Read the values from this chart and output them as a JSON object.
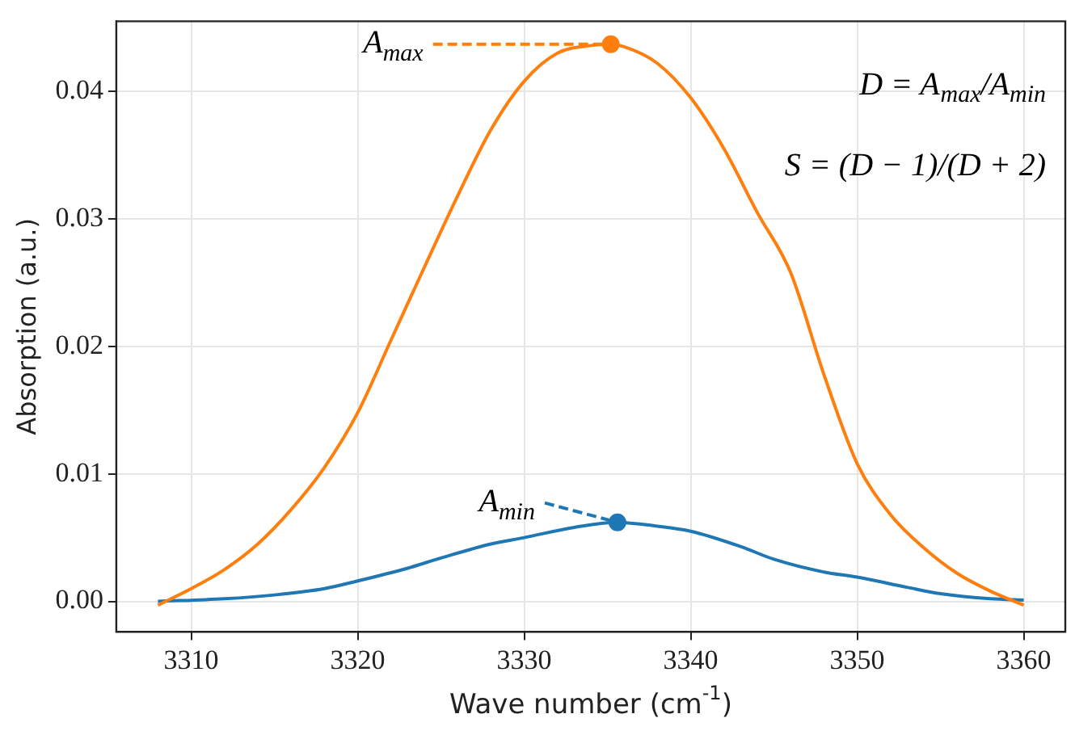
{
  "chart_data": {
    "type": "line",
    "xlabel": "Wave number (cm$^{-1}$)",
    "ylabel": "Absorption (a.u.)",
    "xlim": [
      3305.5,
      3362.5
    ],
    "ylim": [
      -0.0024,
      0.0455
    ],
    "xticks": [
      3310,
      3320,
      3330,
      3340,
      3350,
      3360
    ],
    "yticks": [
      {
        "value": 0,
        "label": "0.00"
      },
      0.01,
      0.02,
      0.03,
      0.04
    ],
    "grid": true,
    "legend": false,
    "marker": "none",
    "line_style": "solid",
    "series": [
      {
        "color": "#ff7f0e",
        "x": [
          3308,
          3310,
          3312,
          3314,
          3316,
          3318,
          3320,
          3322,
          3324,
          3326,
          3328,
          3330,
          3332,
          3334,
          3335,
          3336,
          3338,
          3340,
          3342,
          3344,
          3346,
          3348,
          3350,
          3352,
          3354,
          3356,
          3358,
          3360
        ],
        "values": [
          -0.0003,
          0.001,
          0.0025,
          0.0045,
          0.0072,
          0.0105,
          0.0148,
          0.0205,
          0.0262,
          0.0318,
          0.037,
          0.0408,
          0.043,
          0.0436,
          0.0437,
          0.0435,
          0.0422,
          0.0395,
          0.0355,
          0.0305,
          0.0258,
          0.0178,
          0.0108,
          0.0068,
          0.0042,
          0.0022,
          0.0008,
          -0.0003
        ]
      },
      {
        "color": "#1f77b4",
        "x": [
          3308,
          3312,
          3315,
          3318,
          3320,
          3323,
          3325,
          3328,
          3330,
          3333,
          3335.5,
          3338,
          3340,
          3343,
          3345,
          3348,
          3350,
          3353,
          3355,
          3358,
          3360
        ],
        "values": [
          0,
          0.0002,
          0.0005,
          0.001,
          0.0016,
          0.0026,
          0.0034,
          0.0045,
          0.005,
          0.0058,
          0.0062,
          0.0059,
          0.0055,
          0.0043,
          0.0033,
          0.0023,
          0.0019,
          0.0011,
          0.0006,
          0.0002,
          0.0001
        ]
      },
      {
        "type": "scatter",
        "marker": "circle",
        "color": "#ff7f0e",
        "x": [
          3335.2
        ],
        "values": [
          0.0437
        ]
      },
      {
        "type": "scatter",
        "marker": "circle",
        "color": "#1f77b4",
        "x": [
          3335.6
        ],
        "values": [
          0.0062
        ]
      }
    ],
    "annotations": [
      {
        "text": "A$_{max}$",
        "x": 3335.2,
        "y": 0.0437
      },
      {
        "text": "A$_{min}$",
        "x": 3335.6,
        "y": 0.0062
      },
      "D = A$_{max}$/A$_{min}$",
      "S = (D − 1)/(D + 2)"
    ]
  }
}
